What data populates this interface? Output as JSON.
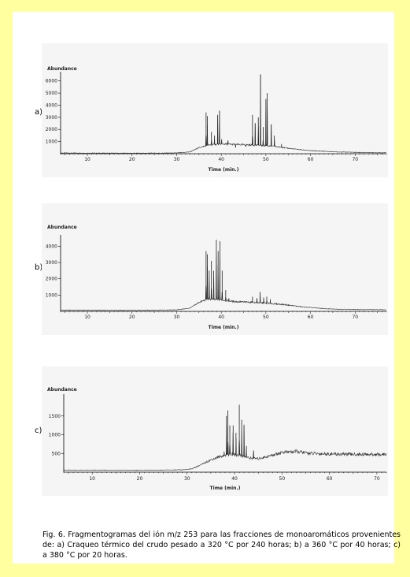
{
  "panels": [
    {
      "label": "a)"
    },
    {
      "label": "b)"
    },
    {
      "label": "c)"
    }
  ],
  "caption": "Fig. 6. Fragmentogramas del ión m/z 253 para las fracciones de monoaromáticos provenientes de: a) Craqueo térmico del crudo pesado a 320 °C por 240 horas; b) a 360 °C por 40 horas; c) a 380 °C por 20 horas.",
  "chart_data": [
    {
      "type": "line",
      "title": "Abundance",
      "xlabel": "Time (min.)",
      "xlim": [
        4,
        77
      ],
      "ylim": [
        0,
        6500
      ],
      "x_ticks": [
        10,
        20,
        30,
        40,
        50,
        60,
        70
      ],
      "y_ticks": [
        1000,
        2000,
        3000,
        4000,
        5000,
        6000
      ],
      "baseline": [
        [
          4,
          60
        ],
        [
          20,
          40
        ],
        [
          30,
          60
        ],
        [
          33,
          150
        ],
        [
          35,
          500
        ],
        [
          37,
          700
        ],
        [
          40,
          800
        ],
        [
          44,
          750
        ],
        [
          48,
          700
        ],
        [
          52,
          600
        ],
        [
          56,
          400
        ],
        [
          60,
          250
        ],
        [
          66,
          150
        ],
        [
          72,
          100
        ],
        [
          77,
          80
        ]
      ],
      "peaks": [
        [
          36.6,
          3400
        ],
        [
          36.9,
          3100
        ],
        [
          37.8,
          1800
        ],
        [
          38.5,
          1500
        ],
        [
          39.2,
          3200
        ],
        [
          39.6,
          3500
        ],
        [
          40.1,
          1200
        ],
        [
          41.5,
          1100
        ],
        [
          43.2,
          500
        ],
        [
          45.5,
          600
        ],
        [
          47.0,
          3200
        ],
        [
          47.6,
          2500
        ],
        [
          48.3,
          3000
        ],
        [
          48.8,
          6500
        ],
        [
          49.4,
          2200
        ],
        [
          50.0,
          4500
        ],
        [
          50.3,
          5000
        ],
        [
          51.2,
          2400
        ],
        [
          51.9,
          1500
        ],
        [
          53.5,
          800
        ]
      ]
    },
    {
      "type": "line",
      "title": "Abundance",
      "xlabel": "Time (min.)",
      "xlim": [
        4,
        77
      ],
      "ylim": [
        0,
        4500
      ],
      "x_ticks": [
        10,
        20,
        30,
        40,
        50,
        60,
        70
      ],
      "y_ticks": [
        1000,
        2000,
        3000,
        4000
      ],
      "baseline": [
        [
          4,
          80
        ],
        [
          20,
          60
        ],
        [
          30,
          90
        ],
        [
          33,
          200
        ],
        [
          35,
          550
        ],
        [
          37,
          750
        ],
        [
          40,
          700
        ],
        [
          43,
          600
        ],
        [
          47,
          550
        ],
        [
          50,
          500
        ],
        [
          54,
          420
        ],
        [
          58,
          280
        ],
        [
          64,
          150
        ],
        [
          70,
          110
        ],
        [
          77,
          100
        ]
      ],
      "peaks": [
        [
          36.6,
          3700
        ],
        [
          36.9,
          3500
        ],
        [
          37.3,
          2500
        ],
        [
          37.8,
          3100
        ],
        [
          38.3,
          2500
        ],
        [
          38.9,
          4400
        ],
        [
          39.3,
          3700
        ],
        [
          39.7,
          4300
        ],
        [
          40.2,
          2500
        ],
        [
          41.0,
          1300
        ],
        [
          41.7,
          800
        ],
        [
          47.0,
          900
        ],
        [
          48.0,
          800
        ],
        [
          48.7,
          1200
        ],
        [
          49.5,
          850
        ],
        [
          50.2,
          900
        ],
        [
          51.0,
          750
        ]
      ]
    },
    {
      "type": "line",
      "title": "Abundance",
      "xlabel": "Time (min.)",
      "xlim": [
        4,
        72
      ],
      "ylim": [
        0,
        2000
      ],
      "x_ticks": [
        10,
        20,
        30,
        40,
        50,
        60,
        70
      ],
      "y_ticks": [
        500,
        1000,
        1500
      ],
      "baseline": [
        [
          4,
          55
        ],
        [
          20,
          50
        ],
        [
          29,
          60
        ],
        [
          31,
          90
        ],
        [
          33,
          200
        ],
        [
          35,
          330
        ],
        [
          37,
          420
        ],
        [
          39,
          480
        ],
        [
          41,
          450
        ],
        [
          43,
          380
        ],
        [
          45,
          360
        ],
        [
          47,
          420
        ],
        [
          50,
          530
        ],
        [
          53,
          550
        ],
        [
          56,
          500
        ],
        [
          62,
          480
        ],
        [
          72,
          470
        ]
      ],
      "peaks": [
        [
          37.8,
          550
        ],
        [
          38.3,
          1500
        ],
        [
          38.6,
          1650
        ],
        [
          39.0,
          1250
        ],
        [
          39.7,
          1250
        ],
        [
          40.3,
          1050
        ],
        [
          41.0,
          1800
        ],
        [
          41.5,
          1400
        ],
        [
          42.0,
          1250
        ],
        [
          42.5,
          700
        ],
        [
          44.0,
          580
        ]
      ]
    }
  ]
}
